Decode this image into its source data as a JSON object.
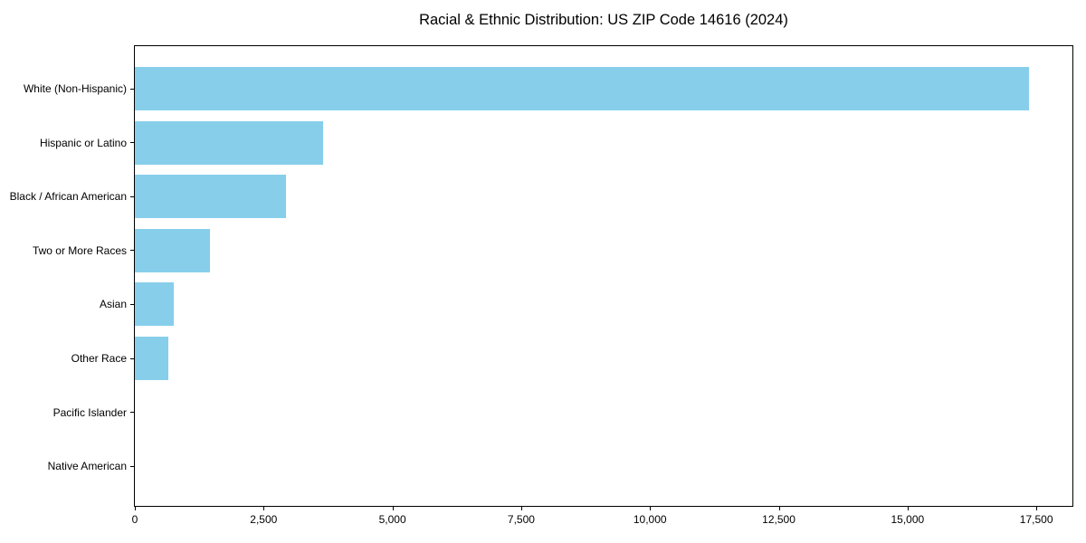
{
  "figure": {
    "background": "#ffffff",
    "text_color": "#000000",
    "spine_color": "#000000"
  },
  "chart_data": {
    "type": "bar",
    "orientation": "horizontal",
    "title": "Racial & Ethnic Distribution: US ZIP Code 14616 (2024)",
    "categories": [
      "White (Non-Hispanic)",
      "Hispanic or Latino",
      "Black / African American",
      "Two or More Races",
      "Asian",
      "Other Race",
      "Pacific Islander",
      "Native American"
    ],
    "values": [
      17360,
      3650,
      2940,
      1460,
      750,
      650,
      0,
      0
    ],
    "bar_color": "#87CEEB",
    "xlabel": "",
    "ylabel": "",
    "xlim": [
      0,
      18200
    ],
    "x_ticks": [
      0,
      2500,
      5000,
      7500,
      10000,
      12500,
      15000,
      17500
    ],
    "x_tick_labels": [
      "0",
      "2,500",
      "5,000",
      "7,500",
      "10,000",
      "12,500",
      "15,000",
      "17,500"
    ],
    "grid": false,
    "legend_position": "none"
  }
}
